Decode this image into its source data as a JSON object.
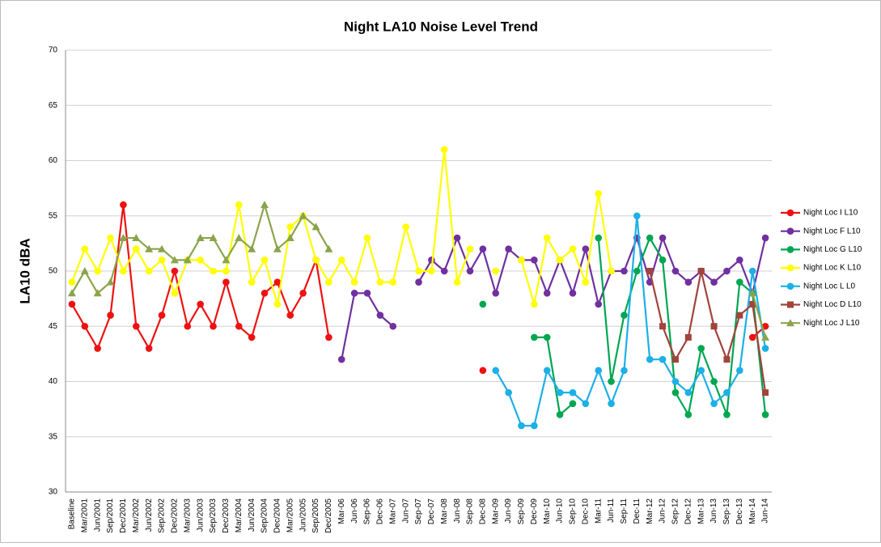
{
  "chart_data": {
    "type": "line",
    "title": "Night LA10 Noise Level Trend",
    "y_label": "LA10 dBA",
    "categories": [
      "Baseline",
      "Mar/2001",
      "Jun/2001",
      "Sep/2001",
      "Dec/2001",
      "Mar/2002",
      "Jun/2002",
      "Sep/2002",
      "Dec/2002",
      "Mar/2003",
      "Jun/2003",
      "Sep/2003",
      "Dec/2003",
      "Mar/2004",
      "Jun/2004",
      "Sep/2004",
      "Dec/2004",
      "Mar/2005",
      "Jun/2005",
      "Sep/2005",
      "Dec/2005",
      "Mar-06",
      "Jun-06",
      "Sep-06",
      "Dec-06",
      "Mar-07",
      "Jun-07",
      "Sep-07",
      "Dec-07",
      "Mar-08",
      "Jun-08",
      "Sep-08",
      "Dec-08",
      "Mar-09",
      "Jun-09",
      "Sep-09",
      "Dec-09",
      "Mar-10",
      "Jun-10",
      "Sep-10",
      "Dec-10",
      "Mar-11",
      "Jun-11",
      "Sep-11",
      "Dec-11",
      "Mar-12",
      "Jun-12",
      "Sep-12",
      "Dec-12",
      "Mar-13",
      "Jun-13",
      "Sep-13",
      "Dec-13",
      "Mar-14",
      "Jun-14"
    ],
    "ylim": [
      30,
      70
    ],
    "yticks": [
      30,
      35,
      40,
      45,
      50,
      55,
      60,
      65,
      70
    ],
    "grid": true,
    "legend": "right",
    "series": [
      {
        "name": "Night Loc I L10",
        "color": "#ee1111",
        "marker": "circle",
        "values": [
          47,
          45,
          43,
          46,
          56,
          45,
          43,
          46,
          50,
          45,
          47,
          45,
          49,
          45,
          44,
          48,
          49,
          46,
          48,
          51,
          44,
          null,
          null,
          null,
          null,
          null,
          null,
          null,
          null,
          null,
          null,
          null,
          41,
          null,
          null,
          null,
          null,
          null,
          null,
          null,
          null,
          null,
          null,
          null,
          null,
          null,
          null,
          null,
          null,
          null,
          null,
          null,
          null,
          44,
          45
        ]
      },
      {
        "name": "Night Loc F L10",
        "color": "#7030a0",
        "marker": "circle",
        "values": [
          null,
          null,
          null,
          null,
          null,
          null,
          null,
          null,
          null,
          null,
          null,
          null,
          null,
          null,
          null,
          null,
          null,
          null,
          null,
          null,
          null,
          42,
          48,
          48,
          46,
          45,
          null,
          49,
          51,
          50,
          53,
          50,
          52,
          48,
          52,
          51,
          51,
          48,
          51,
          48,
          52,
          47,
          50,
          50,
          53,
          49,
          53,
          50,
          49,
          50,
          49,
          50,
          51,
          48,
          53
        ]
      },
      {
        "name": "Night Loc G L10",
        "color": "#00a650",
        "marker": "circle",
        "values": [
          null,
          null,
          null,
          null,
          null,
          null,
          null,
          null,
          null,
          null,
          null,
          null,
          null,
          null,
          null,
          null,
          null,
          null,
          null,
          null,
          null,
          null,
          null,
          null,
          null,
          null,
          null,
          null,
          null,
          null,
          null,
          null,
          47,
          null,
          null,
          null,
          44,
          44,
          37,
          38,
          null,
          53,
          40,
          46,
          50,
          53,
          51,
          39,
          37,
          43,
          40,
          37,
          49,
          48,
          37
        ]
      },
      {
        "name": "Night Loc K L10",
        "color": "#ffff00",
        "marker": "circle",
        "values": [
          49,
          52,
          50,
          53,
          50,
          52,
          50,
          51,
          48,
          51,
          51,
          50,
          50,
          56,
          49,
          51,
          47,
          54,
          55,
          51,
          49,
          51,
          49,
          53,
          49,
          49,
          54,
          50,
          50,
          61,
          49,
          52,
          null,
          50,
          null,
          51,
          47,
          53,
          51,
          52,
          49,
          57,
          50,
          null,
          null,
          null,
          null,
          null,
          null,
          null,
          null,
          null,
          null,
          null,
          null
        ]
      },
      {
        "name": "Night Loc L L0",
        "color": "#1cb0e6",
        "marker": "circle",
        "values": [
          null,
          null,
          null,
          null,
          null,
          null,
          null,
          null,
          null,
          null,
          null,
          null,
          null,
          null,
          null,
          null,
          null,
          null,
          null,
          null,
          null,
          null,
          null,
          null,
          null,
          null,
          null,
          null,
          null,
          null,
          null,
          null,
          null,
          41,
          39,
          36,
          36,
          41,
          39,
          39,
          38,
          41,
          38,
          41,
          55,
          42,
          42,
          40,
          39,
          41,
          38,
          39,
          41,
          50,
          43
        ]
      },
      {
        "name": "Night Loc D L10",
        "color": "#a0443c",
        "marker": "square",
        "values": [
          null,
          null,
          null,
          null,
          null,
          null,
          null,
          null,
          null,
          null,
          null,
          null,
          null,
          null,
          null,
          null,
          null,
          null,
          null,
          null,
          null,
          null,
          null,
          null,
          null,
          null,
          null,
          null,
          null,
          null,
          null,
          null,
          null,
          null,
          null,
          null,
          null,
          null,
          null,
          null,
          null,
          null,
          null,
          null,
          null,
          50,
          45,
          42,
          44,
          50,
          45,
          42,
          46,
          47,
          39
        ]
      },
      {
        "name": "Night Loc J L10",
        "color": "#8ba44c",
        "marker": "triangle",
        "values": [
          48,
          50,
          48,
          49,
          53,
          53,
          52,
          52,
          51,
          51,
          53,
          53,
          51,
          53,
          52,
          56,
          52,
          53,
          55,
          54,
          52,
          null,
          null,
          null,
          null,
          null,
          null,
          null,
          null,
          null,
          null,
          null,
          null,
          null,
          null,
          null,
          null,
          null,
          null,
          null,
          null,
          null,
          null,
          null,
          null,
          null,
          null,
          null,
          null,
          null,
          null,
          null,
          null,
          48,
          44
        ]
      }
    ]
  }
}
